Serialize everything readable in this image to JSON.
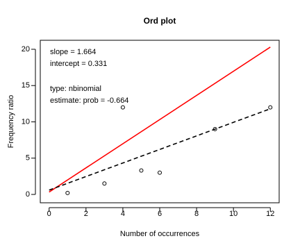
{
  "chart_data": {
    "type": "scatter",
    "title": "Ord plot",
    "x_label": "Number of occurrences",
    "y_label": "Frequency ratio",
    "annotations": [
      "slope = 1.664",
      "intercept = 0.331",
      "type: nbinomial",
      "estimate: prob = -0.664"
    ],
    "series": [
      {
        "kind": "points",
        "color": "#000000",
        "x": [
          1,
          3,
          4,
          5,
          6,
          9,
          12
        ],
        "values": [
          0.2,
          1.5,
          12,
          3.3,
          3.0,
          9,
          12
        ]
      },
      {
        "kind": "line",
        "color": "#ff0000",
        "dashed": false,
        "x": [
          0,
          12
        ],
        "values": [
          0.331,
          20.299
        ]
      },
      {
        "kind": "line",
        "color": "#000000",
        "dashed": true,
        "x": [
          0,
          12
        ],
        "values": [
          0.6,
          11.8
        ]
      }
    ],
    "xlim": [
      -0.48,
      12.48
    ],
    "ylim": [
      -1.15,
      21.24
    ],
    "xticks": [
      0,
      2,
      4,
      6,
      8,
      10,
      12
    ],
    "yticks": [
      0,
      5,
      10,
      15,
      20
    ]
  }
}
